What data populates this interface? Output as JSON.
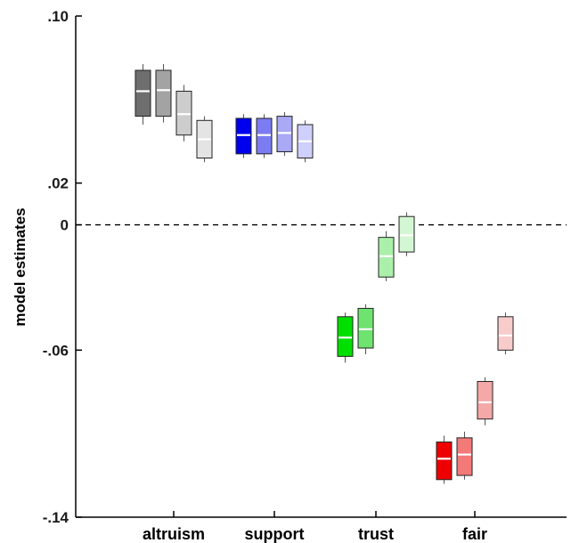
{
  "chart_data": {
    "type": "box",
    "ylabel": "model estimates",
    "xlabel": "",
    "title": "",
    "ylim": [
      -0.14,
      0.1
    ],
    "yticks": [
      {
        "value": 0.1,
        "label": ".10"
      },
      {
        "value": 0.02,
        "label": ".02"
      },
      {
        "value": 0,
        "label": "0"
      },
      {
        "value": -0.06,
        "label": "-.06"
      },
      {
        "value": -0.14,
        "label": "-.14"
      }
    ],
    "reference_line": {
      "value": 0,
      "style": "dashed"
    },
    "categories": [
      {
        "name": "altruism",
        "boxes": [
          {
            "q1": 0.052,
            "median": 0.064,
            "q3": 0.074,
            "whisker_low": 0.048,
            "whisker_high": 0.077,
            "color": "#6e6e6e"
          },
          {
            "q1": 0.052,
            "median": 0.0645,
            "q3": 0.074,
            "whisker_low": 0.049,
            "whisker_high": 0.077,
            "color": "#a3a3a3"
          },
          {
            "q1": 0.043,
            "median": 0.053,
            "q3": 0.064,
            "whisker_low": 0.04,
            "whisker_high": 0.067,
            "color": "#cdcdcd"
          },
          {
            "q1": 0.032,
            "median": 0.041,
            "q3": 0.05,
            "whisker_low": 0.03,
            "whisker_high": 0.052,
            "color": "#e4e4e4"
          }
        ]
      },
      {
        "name": "support",
        "boxes": [
          {
            "q1": 0.034,
            "median": 0.043,
            "q3": 0.051,
            "whisker_low": 0.032,
            "whisker_high": 0.053,
            "color": "#0000ee"
          },
          {
            "q1": 0.034,
            "median": 0.043,
            "q3": 0.051,
            "whisker_low": 0.032,
            "whisker_high": 0.053,
            "color": "#7c7cf2"
          },
          {
            "q1": 0.035,
            "median": 0.044,
            "q3": 0.052,
            "whisker_low": 0.033,
            "whisker_high": 0.054,
            "color": "#a9a9f6"
          },
          {
            "q1": 0.032,
            "median": 0.04,
            "q3": 0.048,
            "whisker_low": 0.03,
            "whisker_high": 0.05,
            "color": "#cfcffb"
          }
        ]
      },
      {
        "name": "trust",
        "boxes": [
          {
            "q1": -0.063,
            "median": -0.054,
            "q3": -0.044,
            "whisker_low": -0.066,
            "whisker_high": -0.042,
            "color": "#00e000"
          },
          {
            "q1": -0.059,
            "median": -0.05,
            "q3": -0.04,
            "whisker_low": -0.062,
            "whisker_high": -0.038,
            "color": "#6fe36f"
          },
          {
            "q1": -0.025,
            "median": -0.015,
            "q3": -0.006,
            "whisker_low": -0.027,
            "whisker_high": -0.003,
            "color": "#aaf0aa"
          },
          {
            "q1": -0.013,
            "median": -0.005,
            "q3": 0.004,
            "whisker_low": -0.015,
            "whisker_high": 0.006,
            "color": "#d3f7d3"
          }
        ]
      },
      {
        "name": "fair",
        "boxes": [
          {
            "q1": -0.122,
            "median": -0.112,
            "q3": -0.104,
            "whisker_low": -0.124,
            "whisker_high": -0.101,
            "color": "#ee0000"
          },
          {
            "q1": -0.12,
            "median": -0.11,
            "q3": -0.102,
            "whisker_low": -0.122,
            "whisker_high": -0.099,
            "color": "#f47a7a"
          },
          {
            "q1": -0.093,
            "median": -0.085,
            "q3": -0.075,
            "whisker_low": -0.096,
            "whisker_high": -0.073,
            "color": "#f5a8a8"
          },
          {
            "q1": -0.06,
            "median": -0.053,
            "q3": -0.044,
            "whisker_low": -0.062,
            "whisker_high": -0.042,
            "color": "#f9cccc"
          }
        ]
      }
    ]
  }
}
